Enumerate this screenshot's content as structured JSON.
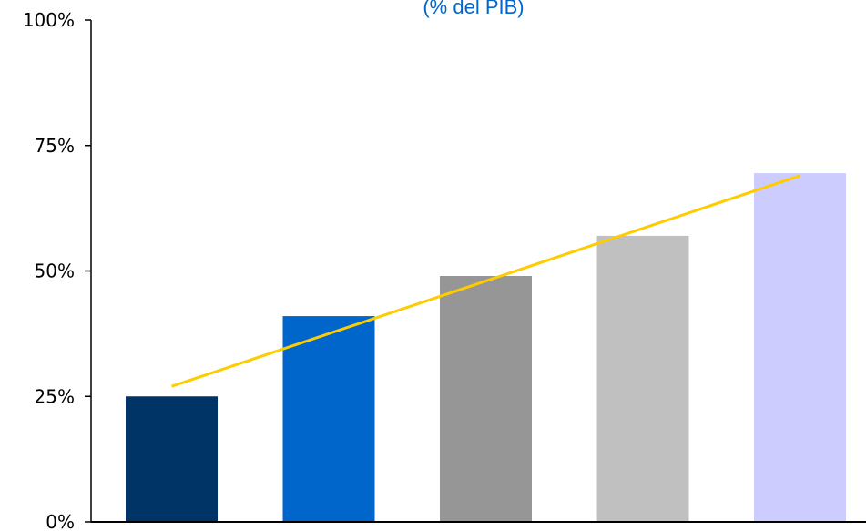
{
  "chart_data": {
    "type": "bar",
    "subtitle": "(% del PIB)",
    "categories": [
      "",
      "",
      "",
      "",
      ""
    ],
    "values": [
      25,
      41,
      49,
      57,
      69.5
    ],
    "bar_colors": [
      "#003366",
      "#0066CC",
      "#969696",
      "#C0C0C0",
      "#CCCCFF"
    ],
    "trendline": {
      "color": "#FFCC00",
      "start": 27,
      "end": 69
    },
    "ylim": [
      0,
      100
    ],
    "yticks": [
      {
        "value": 0,
        "label": "0%"
      },
      {
        "value": 25,
        "label": "25%"
      },
      {
        "value": 50,
        "label": "50%"
      },
      {
        "value": 75,
        "label": "75%"
      },
      {
        "value": 100,
        "label": "100%"
      }
    ],
    "subtitle_color": "#0066CC",
    "grid": false,
    "legend": "none"
  }
}
